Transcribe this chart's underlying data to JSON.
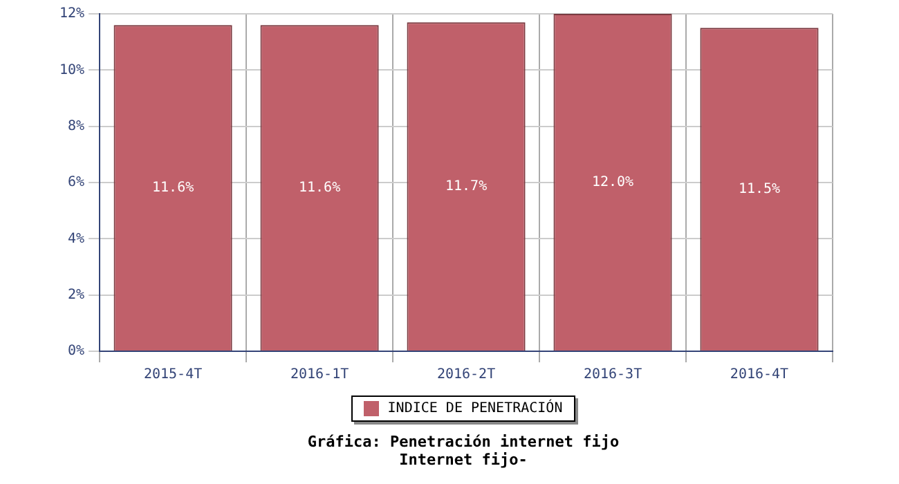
{
  "chart_data": {
    "type": "bar",
    "title": "Gráfica: Penetración internet fijo",
    "subtitle": "Internet fijo-",
    "categories": [
      "2015-4T",
      "2016-1T",
      "2016-2T",
      "2016-3T",
      "2016-4T"
    ],
    "series": [
      {
        "name": "INDICE DE PENETRACIÓN",
        "color": "#c0606a",
        "values": [
          11.6,
          11.6,
          11.7,
          12.0,
          11.5
        ],
        "value_labels": [
          "11.6%",
          "11.6%",
          "11.7%",
          "12.0%",
          "11.5%"
        ]
      }
    ],
    "ylim": [
      0,
      12
    ],
    "yticks": [
      {
        "value": 0,
        "label": "0%"
      },
      {
        "value": 2,
        "label": "2%"
      },
      {
        "value": 4,
        "label": "4%"
      },
      {
        "value": 6,
        "label": "6%"
      },
      {
        "value": 8,
        "label": "8%"
      },
      {
        "value": 10,
        "label": "10%"
      },
      {
        "value": 12,
        "label": "12%"
      }
    ],
    "grid": true,
    "legend": "bottom"
  }
}
